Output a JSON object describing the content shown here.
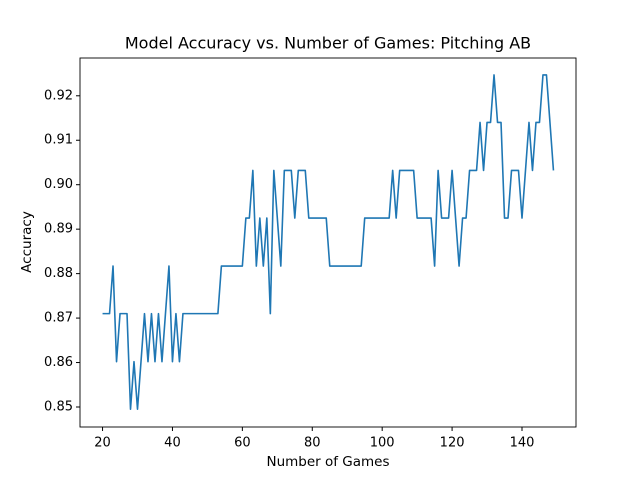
{
  "chart_data": {
    "type": "line",
    "title": "Model Accuracy vs. Number of Games: Pitching AB",
    "xlabel": "Number of Games",
    "ylabel": "Accuracy",
    "x": [
      20,
      21,
      22,
      23,
      24,
      25,
      26,
      27,
      28,
      29,
      30,
      31,
      32,
      33,
      34,
      35,
      36,
      37,
      38,
      39,
      40,
      41,
      42,
      43,
      44,
      45,
      46,
      47,
      48,
      49,
      50,
      51,
      52,
      53,
      54,
      55,
      56,
      57,
      58,
      59,
      60,
      61,
      62,
      63,
      64,
      65,
      66,
      67,
      68,
      69,
      70,
      71,
      72,
      73,
      74,
      75,
      76,
      77,
      78,
      79,
      80,
      81,
      82,
      83,
      84,
      85,
      86,
      87,
      88,
      89,
      90,
      91,
      92,
      93,
      94,
      95,
      96,
      97,
      98,
      99,
      100,
      101,
      102,
      103,
      104,
      105,
      106,
      107,
      108,
      109,
      110,
      111,
      112,
      113,
      114,
      115,
      116,
      117,
      118,
      119,
      120,
      121,
      122,
      123,
      124,
      125,
      126,
      127,
      128,
      129,
      130,
      131,
      132,
      133,
      134,
      135,
      136,
      137,
      138,
      139,
      140,
      141,
      142,
      143,
      144,
      145,
      146,
      147,
      148,
      149
    ],
    "series": [
      {
        "name": "Accuracy",
        "color": "#1f77b4",
        "values": [
          0.871,
          0.871,
          0.871,
          0.8817,
          0.8602,
          0.871,
          0.871,
          0.871,
          0.8495,
          0.8602,
          0.8495,
          0.8602,
          0.871,
          0.8602,
          0.871,
          0.8602,
          0.871,
          0.8602,
          0.871,
          0.8817,
          0.8602,
          0.871,
          0.8602,
          0.871,
          0.871,
          0.871,
          0.871,
          0.871,
          0.871,
          0.871,
          0.871,
          0.871,
          0.871,
          0.871,
          0.8817,
          0.8817,
          0.8817,
          0.8817,
          0.8817,
          0.8817,
          0.8817,
          0.8925,
          0.8925,
          0.9032,
          0.8817,
          0.8925,
          0.8817,
          0.8925,
          0.871,
          0.9032,
          0.8925,
          0.8817,
          0.9032,
          0.9032,
          0.9032,
          0.8925,
          0.9032,
          0.9032,
          0.9032,
          0.8925,
          0.8925,
          0.8925,
          0.8925,
          0.8925,
          0.8925,
          0.8817,
          0.8817,
          0.8817,
          0.8817,
          0.8817,
          0.8817,
          0.8817,
          0.8817,
          0.8817,
          0.8817,
          0.8925,
          0.8925,
          0.8925,
          0.8925,
          0.8925,
          0.8925,
          0.8925,
          0.8925,
          0.9032,
          0.8925,
          0.9032,
          0.9032,
          0.9032,
          0.9032,
          0.9032,
          0.8925,
          0.8925,
          0.8925,
          0.8925,
          0.8925,
          0.8817,
          0.9032,
          0.8925,
          0.8925,
          0.8925,
          0.9032,
          0.8925,
          0.8817,
          0.8925,
          0.8925,
          0.9032,
          0.9032,
          0.9032,
          0.914,
          0.9032,
          0.914,
          0.914,
          0.9247,
          0.914,
          0.914,
          0.8925,
          0.8925,
          0.9032,
          0.9032,
          0.9032,
          0.8925,
          0.9032,
          0.914,
          0.9032,
          0.914,
          0.914,
          0.9247,
          0.9247,
          0.914,
          0.9032
        ]
      }
    ],
    "xlim": [
      13.55,
      155.45
    ],
    "xticks": [
      20,
      40,
      60,
      80,
      100,
      120,
      140
    ],
    "ylim": [
      0.8455,
      0.9285
    ],
    "yticks": [
      0.85,
      0.86,
      0.87,
      0.88,
      0.89,
      {
        "value": 0.9,
        "label": "0.90"
      },
      0.91,
      0.92
    ],
    "grid": false
  }
}
